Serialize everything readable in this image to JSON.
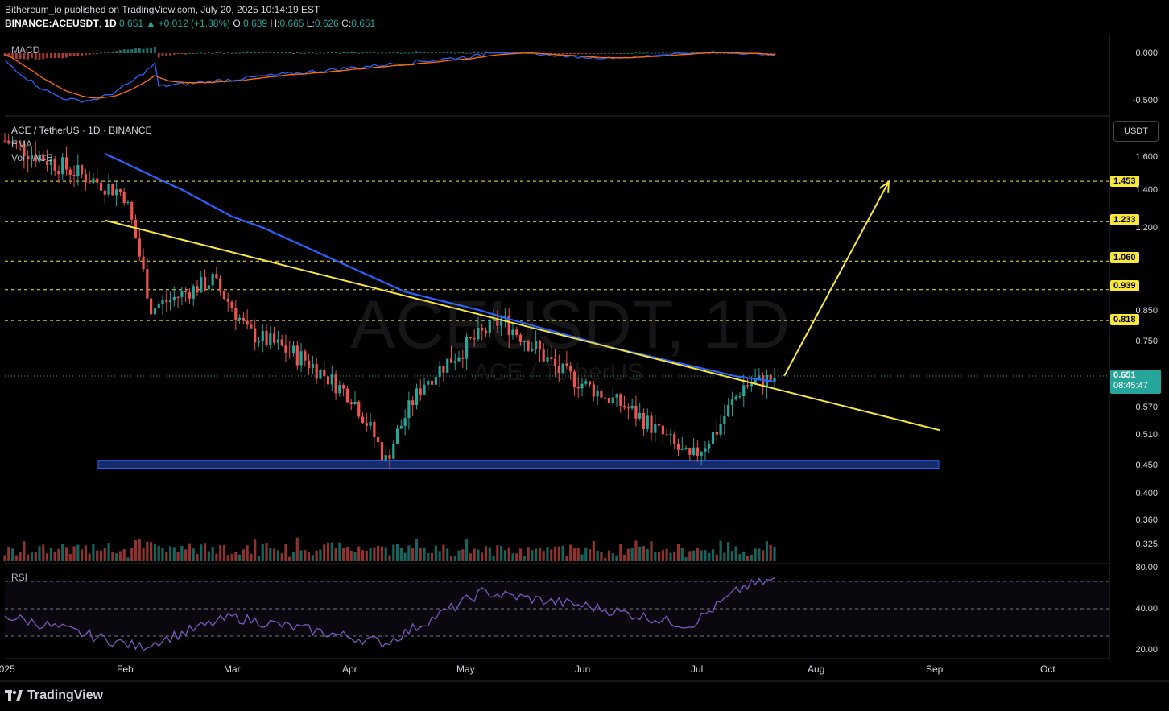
{
  "header": {
    "publisher_line": "Bithereum_io published on TradingView.com, July 20, 2025 10:14:19 EST",
    "publisher": "Bithereum_io",
    "symbol_line": {
      "symbol": "BINANCE:ACEUSDT",
      "interval": "1D",
      "last": "0.651",
      "change": "+0.012 (+1.88%)",
      "open": "0.639",
      "high": "0.665",
      "low": "0.626",
      "close": "0.651"
    }
  },
  "panes": {
    "macd_label": "MACD",
    "main_title": "ACE / TetherUS · 1D · BINANCE",
    "ema_label": "EMA",
    "vol_label": "Vol · ACE",
    "rsi_label": "RSI",
    "watermark_big": "ACEUSDT, 1D",
    "watermark_small": "ACE / TetherUS"
  },
  "price_axis": {
    "currency_button": "USDT",
    "macd_ticks": [
      "0.000",
      "-0.500"
    ],
    "price_ticks": [
      "1.600",
      "1.400",
      "1.200",
      "1.060",
      "0.850",
      "0.750",
      "0.570",
      "0.510",
      "0.450",
      "0.400",
      "0.360",
      "0.325"
    ],
    "rsi_ticks": [
      "80.00",
      "40.00",
      "20.00"
    ],
    "current_price": "0.651",
    "countdown": "08:45:47",
    "levels": [
      "1.453",
      "1.233",
      "1.060",
      "0.939",
      "0.818"
    ]
  },
  "time_axis": [
    "2025",
    "Feb",
    "Mar",
    "Apr",
    "May",
    "Jun",
    "Jul",
    "Aug",
    "Sep",
    "Oct"
  ],
  "footer": {
    "brand": "TradingView"
  },
  "colors": {
    "up": "#26a69a",
    "down": "#ef5350",
    "ema": "#2962ff",
    "trendline": "#f7e73c",
    "level": "#f7e73c",
    "support_zone": "#1e3a8a",
    "rsi": "#7e57c2",
    "macd_line": "#2962ff",
    "signal_line": "#ff6d00"
  },
  "chart_data": {
    "type": "candlestick",
    "title": "ACE / TetherUS · 1D · BINANCE",
    "support_zone": [
      0.445,
      0.46
    ],
    "horizontal_levels": [
      1.453,
      1.233,
      1.06,
      0.939,
      0.818
    ],
    "trendline": [
      [
        "2025-01-27",
        1.24
      ],
      [
        "2025-09-01",
        0.52
      ]
    ],
    "projection_arrow": [
      [
        "2025-07-20",
        0.655
      ],
      [
        "2025-08-17",
        1.45
      ]
    ],
    "ema_anchor_values": [
      [
        "2025-01-27",
        1.62
      ],
      [
        "2025-03-01",
        1.26
      ],
      [
        "2025-04-15",
        0.93
      ],
      [
        "2025-05-10",
        0.83
      ],
      [
        "2025-06-05",
        0.74
      ],
      [
        "2025-07-10",
        0.655
      ],
      [
        "2025-07-20",
        0.64
      ]
    ],
    "close_anchor_values": [
      [
        "2025-01-01",
        1.7
      ],
      [
        "2025-01-20",
        1.5
      ],
      [
        "2025-02-01",
        1.38
      ],
      [
        "2025-02-08",
        0.86
      ],
      [
        "2025-02-24",
        0.98
      ],
      [
        "2025-03-05",
        0.78
      ],
      [
        "2025-03-20",
        0.7
      ],
      [
        "2025-04-01",
        0.6
      ],
      [
        "2025-04-10",
        0.46
      ],
      [
        "2025-04-20",
        0.64
      ],
      [
        "2025-05-10",
        0.82
      ],
      [
        "2025-05-25",
        0.67
      ],
      [
        "2025-06-15",
        0.55
      ],
      [
        "2025-06-28",
        0.46
      ],
      [
        "2025-07-05",
        0.52
      ],
      [
        "2025-07-12",
        0.63
      ],
      [
        "2025-07-20",
        0.651
      ]
    ],
    "rsi_anchor_values": [
      [
        "2025-01-01",
        45
      ],
      [
        "2025-02-05",
        22
      ],
      [
        "2025-03-01",
        44
      ],
      [
        "2025-04-10",
        25
      ],
      [
        "2025-05-05",
        62
      ],
      [
        "2025-06-01",
        52
      ],
      [
        "2025-06-28",
        38
      ],
      [
        "2025-07-12",
        66
      ],
      [
        "2025-07-20",
        71
      ]
    ],
    "xlabels": [
      "2025",
      "Feb",
      "Mar",
      "Apr",
      "May",
      "Jun",
      "Jul",
      "Aug",
      "Sep",
      "Oct"
    ]
  }
}
